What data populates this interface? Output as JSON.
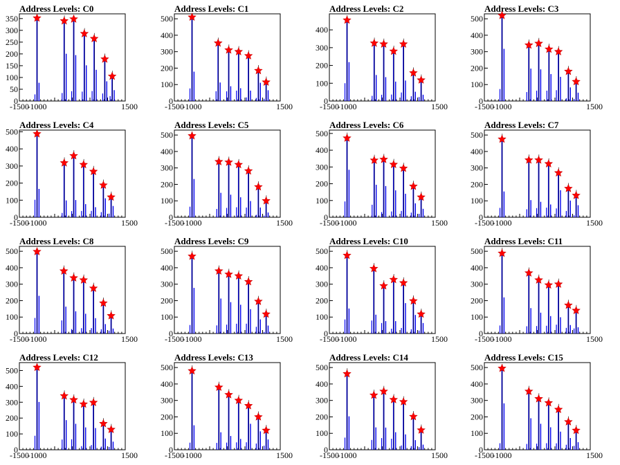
{
  "chart_data": [
    {
      "title": "Address Levels: C0",
      "type": "histogram",
      "xlim": [
        -1500,
        1500
      ],
      "ylim": [
        0,
        370
      ],
      "yticks": [
        0,
        50,
        100,
        150,
        200,
        250,
        300,
        350
      ],
      "xticks": [
        -1500,
        -1000,
        -500,
        0,
        500,
        1000,
        1500
      ],
      "xtick_labels": [
        "-1500",
        "-1000",
        "",
        "",
        "",
        "",
        "1500"
      ],
      "peaks": [
        {
          "x": -1000,
          "y": 352
        },
        {
          "x": -230,
          "y": 340
        },
        {
          "x": 40,
          "y": 348
        },
        {
          "x": 340,
          "y": 286
        },
        {
          "x": 620,
          "y": 265
        },
        {
          "x": 920,
          "y": 178
        },
        {
          "x": 1130,
          "y": 105
        }
      ]
    },
    {
      "title": "Address Levels: C1",
      "type": "histogram",
      "xlim": [
        -1500,
        1500
      ],
      "ylim": [
        0,
        530
      ],
      "yticks": [
        0,
        100,
        200,
        300,
        400,
        500
      ],
      "xticks": [
        -1500,
        -1000,
        -500,
        0,
        500,
        1000,
        1500
      ],
      "xtick_labels": [
        "-1500",
        "-1000",
        "",
        "",
        "",
        "",
        "1500"
      ],
      "peaks": [
        {
          "x": -1000,
          "y": 510
        },
        {
          "x": -260,
          "y": 352
        },
        {
          "x": 40,
          "y": 310
        },
        {
          "x": 320,
          "y": 300
        },
        {
          "x": 600,
          "y": 275
        },
        {
          "x": 880,
          "y": 185
        },
        {
          "x": 1100,
          "y": 115
        }
      ]
    },
    {
      "title": "Address Levels: C2",
      "type": "histogram",
      "xlim": [
        -1500,
        1500
      ],
      "ylim": [
        0,
        490
      ],
      "yticks": [
        0,
        100,
        200,
        300,
        400
      ],
      "xticks": [
        -1500,
        -1000,
        -500,
        0,
        500,
        1000,
        1500
      ],
      "xtick_labels": [
        "-1500",
        "-1000",
        "",
        "",
        "",
        "",
        "1500"
      ],
      "peaks": [
        {
          "x": -1000,
          "y": 455
        },
        {
          "x": -230,
          "y": 325
        },
        {
          "x": 40,
          "y": 320
        },
        {
          "x": 320,
          "y": 280
        },
        {
          "x": 600,
          "y": 320
        },
        {
          "x": 880,
          "y": 158
        },
        {
          "x": 1100,
          "y": 118
        }
      ]
    },
    {
      "title": "Address Levels: C3",
      "type": "histogram",
      "xlim": [
        -1500,
        1500
      ],
      "ylim": [
        0,
        530
      ],
      "yticks": [
        0,
        100,
        200,
        300,
        400,
        500
      ],
      "xticks": [
        -1500,
        -1000,
        -500,
        0,
        500,
        1000,
        1500
      ],
      "xtick_labels": [
        "-1500",
        "-1000",
        "",
        "",
        "",
        "",
        "1500"
      ],
      "peaks": [
        {
          "x": -1000,
          "y": 520
        },
        {
          "x": -240,
          "y": 340
        },
        {
          "x": 40,
          "y": 350
        },
        {
          "x": 330,
          "y": 315
        },
        {
          "x": 600,
          "y": 300
        },
        {
          "x": 880,
          "y": 180
        },
        {
          "x": 1100,
          "y": 118
        }
      ]
    },
    {
      "title": "Address Levels: C4",
      "type": "histogram",
      "xlim": [
        -1500,
        1500
      ],
      "ylim": [
        0,
        510
      ],
      "yticks": [
        0,
        100,
        200,
        300,
        400,
        500
      ],
      "xticks": [
        -1500,
        -1000,
        -500,
        0,
        500,
        1000,
        1500
      ],
      "xtick_labels": [
        "-1500",
        "-1000",
        "",
        "",
        "",
        "",
        "1500"
      ],
      "peaks": [
        {
          "x": -1000,
          "y": 488
        },
        {
          "x": -230,
          "y": 318
        },
        {
          "x": 40,
          "y": 360
        },
        {
          "x": 320,
          "y": 308
        },
        {
          "x": 600,
          "y": 268
        },
        {
          "x": 880,
          "y": 188
        },
        {
          "x": 1100,
          "y": 118
        }
      ]
    },
    {
      "title": "Address Levels: C5",
      "type": "histogram",
      "xlim": [
        -1500,
        1500
      ],
      "ylim": [
        0,
        530
      ],
      "yticks": [
        0,
        100,
        200,
        300,
        400,
        500
      ],
      "xticks": [
        -1500,
        -1000,
        -500,
        0,
        500,
        1000,
        1500
      ],
      "xtick_labels": [
        "-1500",
        "-1000",
        "",
        "",
        "",
        "",
        "1500"
      ],
      "peaks": [
        {
          "x": -1000,
          "y": 495
        },
        {
          "x": -240,
          "y": 338
        },
        {
          "x": 40,
          "y": 335
        },
        {
          "x": 320,
          "y": 320
        },
        {
          "x": 600,
          "y": 282
        },
        {
          "x": 880,
          "y": 185
        },
        {
          "x": 1100,
          "y": 100
        }
      ]
    },
    {
      "title": "Address Levels: C6",
      "type": "histogram",
      "xlim": [
        -1500,
        1500
      ],
      "ylim": [
        0,
        520
      ],
      "yticks": [
        0,
        100,
        200,
        300,
        400,
        500
      ],
      "xticks": [
        -1500,
        -1000,
        -500,
        0,
        500,
        1000,
        1500
      ],
      "xtick_labels": [
        "-1500",
        "-1000",
        "",
        "",
        "",
        "",
        "1500"
      ],
      "peaks": [
        {
          "x": -1000,
          "y": 472
        },
        {
          "x": -230,
          "y": 340
        },
        {
          "x": 40,
          "y": 345
        },
        {
          "x": 320,
          "y": 315
        },
        {
          "x": 600,
          "y": 292
        },
        {
          "x": 880,
          "y": 185
        },
        {
          "x": 1100,
          "y": 120
        }
      ]
    },
    {
      "title": "Address Levels: C7",
      "type": "histogram",
      "xlim": [
        -1500,
        1500
      ],
      "ylim": [
        0,
        530
      ],
      "yticks": [
        0,
        100,
        200,
        300,
        400,
        500
      ],
      "xticks": [
        -1500,
        -1000,
        -500,
        0,
        500,
        1000,
        1500
      ],
      "xtick_labels": [
        "-1500",
        "-1000",
        "",
        "",
        "",
        "",
        "1500"
      ],
      "peaks": [
        {
          "x": -1000,
          "y": 475
        },
        {
          "x": -240,
          "y": 348
        },
        {
          "x": 40,
          "y": 348
        },
        {
          "x": 320,
          "y": 325
        },
        {
          "x": 600,
          "y": 270
        },
        {
          "x": 880,
          "y": 175
        },
        {
          "x": 1100,
          "y": 133
        }
      ]
    },
    {
      "title": "Address Levels: C8",
      "type": "histogram",
      "xlim": [
        -1500,
        1500
      ],
      "ylim": [
        0,
        530
      ],
      "yticks": [
        0,
        100,
        200,
        300,
        400,
        500
      ],
      "xticks": [
        -1500,
        -1000,
        -500,
        0,
        500,
        1000,
        1500
      ],
      "xtick_labels": [
        "-1500",
        "-1000",
        "",
        "",
        "",
        "",
        "1500"
      ],
      "peaks": [
        {
          "x": -1000,
          "y": 498
        },
        {
          "x": -240,
          "y": 380
        },
        {
          "x": 40,
          "y": 338
        },
        {
          "x": 320,
          "y": 325
        },
        {
          "x": 600,
          "y": 275
        },
        {
          "x": 880,
          "y": 185
        },
        {
          "x": 1100,
          "y": 108
        }
      ]
    },
    {
      "title": "Address Levels: C9",
      "type": "histogram",
      "xlim": [
        -1500,
        1500
      ],
      "ylim": [
        0,
        530
      ],
      "yticks": [
        0,
        100,
        200,
        300,
        400,
        500
      ],
      "xticks": [
        -1500,
        -1000,
        -500,
        0,
        500,
        1000,
        1500
      ],
      "xtick_labels": [
        "-1500",
        "-1000",
        "",
        "",
        "",
        "",
        "1500"
      ],
      "peaks": [
        {
          "x": -1000,
          "y": 470
        },
        {
          "x": -240,
          "y": 380
        },
        {
          "x": 40,
          "y": 360
        },
        {
          "x": 320,
          "y": 350
        },
        {
          "x": 600,
          "y": 315
        },
        {
          "x": 880,
          "y": 195
        },
        {
          "x": 1100,
          "y": 118
        }
      ]
    },
    {
      "title": "Address Levels: C10",
      "type": "histogram",
      "xlim": [
        -1500,
        1500
      ],
      "ylim": [
        0,
        530
      ],
      "yticks": [
        0,
        100,
        200,
        300,
        400,
        500
      ],
      "xticks": [
        -1500,
        -1000,
        -500,
        0,
        500,
        1000,
        1500
      ],
      "xtick_labels": [
        "-1500",
        "-1000",
        "",
        "",
        "",
        "",
        "1500"
      ],
      "peaks": [
        {
          "x": -1000,
          "y": 475
        },
        {
          "x": -240,
          "y": 395
        },
        {
          "x": 40,
          "y": 290
        },
        {
          "x": 320,
          "y": 328
        },
        {
          "x": 600,
          "y": 308
        },
        {
          "x": 880,
          "y": 198
        },
        {
          "x": 1100,
          "y": 118
        }
      ]
    },
    {
      "title": "Address Levels: C11",
      "type": "histogram",
      "xlim": [
        -1500,
        1500
      ],
      "ylim": [
        0,
        530
      ],
      "yticks": [
        0,
        100,
        200,
        300,
        400,
        500
      ],
      "xticks": [
        -1500,
        -1000,
        -500,
        0,
        500,
        1000,
        1500
      ],
      "xtick_labels": [
        "-1500",
        "-1000",
        "",
        "",
        "",
        "",
        "1500"
      ],
      "peaks": [
        {
          "x": -1000,
          "y": 488
        },
        {
          "x": -240,
          "y": 368
        },
        {
          "x": 40,
          "y": 325
        },
        {
          "x": 320,
          "y": 295
        },
        {
          "x": 600,
          "y": 300
        },
        {
          "x": 880,
          "y": 172
        },
        {
          "x": 1100,
          "y": 140
        }
      ]
    },
    {
      "title": "Address Levels: C12",
      "type": "histogram",
      "xlim": [
        -1500,
        1500
      ],
      "ylim": [
        0,
        550
      ],
      "yticks": [
        0,
        100,
        200,
        300,
        400,
        500
      ],
      "xticks": [
        -1500,
        -1000,
        -500,
        0,
        500,
        1000,
        1500
      ],
      "xtick_labels": [
        "-1500",
        "-1000",
        "",
        "",
        "",
        "",
        "1500"
      ],
      "peaks": [
        {
          "x": -1000,
          "y": 520
        },
        {
          "x": -230,
          "y": 340
        },
        {
          "x": 40,
          "y": 315
        },
        {
          "x": 320,
          "y": 288
        },
        {
          "x": 600,
          "y": 298
        },
        {
          "x": 880,
          "y": 165
        },
        {
          "x": 1100,
          "y": 128
        }
      ]
    },
    {
      "title": "Address Levels: C13",
      "type": "histogram",
      "xlim": [
        -1500,
        1500
      ],
      "ylim": [
        0,
        530
      ],
      "yticks": [
        0,
        100,
        200,
        300,
        400,
        500
      ],
      "xticks": [
        -1500,
        -1000,
        -500,
        0,
        500,
        1000,
        1500
      ],
      "xtick_labels": [
        "-1500",
        "-1000",
        "",
        "",
        "",
        "",
        "1500"
      ],
      "peaks": [
        {
          "x": -1000,
          "y": 480
        },
        {
          "x": -240,
          "y": 380
        },
        {
          "x": 40,
          "y": 335
        },
        {
          "x": 320,
          "y": 300
        },
        {
          "x": 600,
          "y": 268
        },
        {
          "x": 880,
          "y": 200
        },
        {
          "x": 1100,
          "y": 118
        }
      ]
    },
    {
      "title": "Address Levels: C14",
      "type": "histogram",
      "xlim": [
        -1500,
        1500
      ],
      "ylim": [
        0,
        530
      ],
      "yticks": [
        0,
        100,
        200,
        300,
        400,
        500
      ],
      "xticks": [
        -1500,
        -1000,
        -500,
        0,
        500,
        1000,
        1500
      ],
      "xtick_labels": [
        "-1500",
        "-1000",
        "",
        "",
        "",
        "",
        "1500"
      ],
      "peaks": [
        {
          "x": -1000,
          "y": 462
        },
        {
          "x": -240,
          "y": 332
        },
        {
          "x": 40,
          "y": 355
        },
        {
          "x": 320,
          "y": 305
        },
        {
          "x": 600,
          "y": 292
        },
        {
          "x": 880,
          "y": 202
        },
        {
          "x": 1100,
          "y": 120
        }
      ]
    },
    {
      "title": "Address Levels: C15",
      "type": "histogram",
      "xlim": [
        -1500,
        1500
      ],
      "ylim": [
        0,
        530
      ],
      "yticks": [
        0,
        100,
        200,
        300,
        400,
        500
      ],
      "xticks": [
        -1500,
        -1000,
        -500,
        0,
        500,
        1000,
        1500
      ],
      "xtick_labels": [
        "-1500",
        "-1000",
        "",
        "",
        "",
        "",
        "1500"
      ],
      "peaks": [
        {
          "x": -1000,
          "y": 495
        },
        {
          "x": -240,
          "y": 355
        },
        {
          "x": 40,
          "y": 310
        },
        {
          "x": 320,
          "y": 285
        },
        {
          "x": 600,
          "y": 245
        },
        {
          "x": 880,
          "y": 170
        },
        {
          "x": 1100,
          "y": 118
        }
      ]
    }
  ],
  "colors": {
    "bars": "#0000ee",
    "markers": "#ff0000",
    "marker_stroke": "#cc0000",
    "axes": "#000000"
  }
}
